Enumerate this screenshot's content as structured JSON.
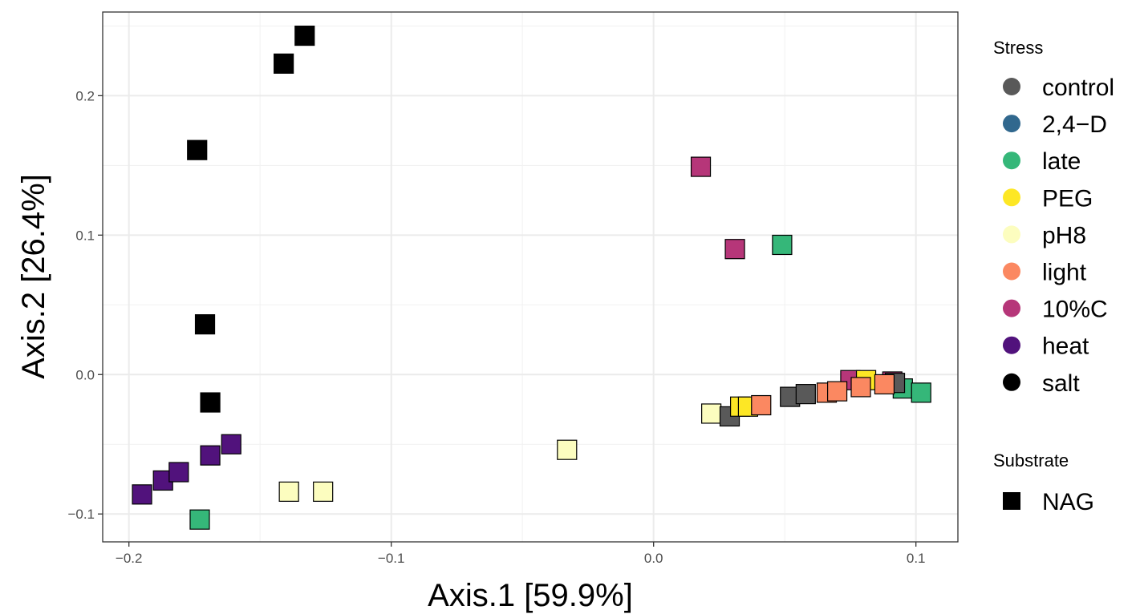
{
  "chart_data": {
    "type": "scatter",
    "xlabel": "Axis.1   [59.9%]",
    "ylabel": "Axis.2   [26.4%]",
    "xlim": [
      -0.21,
      0.116
    ],
    "ylim": [
      -0.12,
      0.26
    ],
    "x_ticks": [
      -0.2,
      -0.1,
      0.0,
      0.1
    ],
    "y_ticks": [
      -0.1,
      0.0,
      0.1,
      0.2
    ],
    "x_tick_labels": [
      "−0.2",
      "−0.1",
      "0.0",
      "0.1"
    ],
    "y_tick_labels": [
      "−0.1",
      "0.0",
      "0.1",
      "0.2"
    ],
    "grid": true,
    "legend_placement": "right",
    "legends": [
      {
        "title": "Stress",
        "entries": [
          {
            "label": "control",
            "color": "#595959"
          },
          {
            "label": "2,4−D",
            "color": "#31688E"
          },
          {
            "label": "late",
            "color": "#35B779"
          },
          {
            "label": "PEG",
            "color": "#FDE725"
          },
          {
            "label": "pH8",
            "color": "#FCFDBF"
          },
          {
            "label": "light",
            "color": "#FB8861"
          },
          {
            "label": "10%C",
            "color": "#B63679"
          },
          {
            "label": "heat",
            "color": "#51127C"
          },
          {
            "label": "salt",
            "color": "#000000"
          }
        ]
      },
      {
        "title": "Substrate",
        "entries": [
          {
            "label": "NAG",
            "shape": "square"
          }
        ]
      }
    ],
    "series": [
      {
        "name": "salt",
        "points": [
          [
            -0.133,
            0.243
          ],
          [
            -0.141,
            0.223
          ],
          [
            -0.174,
            0.161
          ],
          [
            -0.171,
            0.036
          ],
          [
            -0.169,
            -0.02
          ]
        ]
      },
      {
        "name": "heat",
        "points": [
          [
            -0.195,
            -0.086
          ],
          [
            -0.187,
            -0.076
          ],
          [
            -0.181,
            -0.07
          ],
          [
            -0.169,
            -0.058
          ],
          [
            -0.161,
            -0.05
          ]
        ]
      },
      {
        "name": "late",
        "points": [
          [
            -0.173,
            -0.104
          ],
          [
            0.049,
            0.093
          ],
          [
            0.095,
            -0.01
          ],
          [
            0.102,
            -0.013
          ]
        ]
      },
      {
        "name": "pH8",
        "points": [
          [
            -0.139,
            -0.084
          ],
          [
            -0.126,
            -0.084
          ],
          [
            -0.033,
            -0.054
          ],
          [
            0.022,
            -0.028
          ]
        ]
      },
      {
        "name": "10%C",
        "points": [
          [
            0.018,
            0.149
          ],
          [
            0.031,
            0.09
          ],
          [
            0.075,
            -0.004
          ],
          [
            0.091,
            -0.005
          ]
        ]
      },
      {
        "name": "control",
        "points": [
          [
            0.029,
            -0.03
          ],
          [
            0.052,
            -0.016
          ],
          [
            0.058,
            -0.014
          ],
          [
            0.092,
            -0.006
          ]
        ]
      },
      {
        "name": "PEG",
        "points": [
          [
            0.033,
            -0.023
          ],
          [
            0.036,
            -0.023
          ],
          [
            0.081,
            -0.004
          ]
        ]
      },
      {
        "name": "light",
        "points": [
          [
            0.041,
            -0.022
          ],
          [
            0.066,
            -0.013
          ],
          [
            0.07,
            -0.012
          ],
          [
            0.079,
            -0.009
          ],
          [
            0.088,
            -0.007
          ]
        ]
      }
    ]
  }
}
